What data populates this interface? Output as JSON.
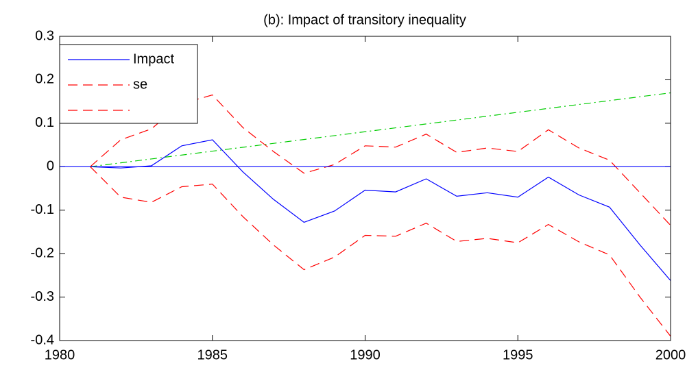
{
  "chart_data": {
    "type": "line",
    "title": "(b): Impact of transitory inequality",
    "xlim": [
      1980,
      2000
    ],
    "xticks": [
      1980,
      1985,
      1990,
      1995,
      2000
    ],
    "ylim": [
      -0.4,
      0.3
    ],
    "yticks": [
      -0.4,
      -0.3,
      -0.2,
      -0.1,
      0,
      0.1,
      0.2,
      0.3
    ],
    "grid": false,
    "legend_position": "upper left",
    "series": [
      {
        "name": "Impact",
        "color": "#0000ff",
        "dash": "solid",
        "legend": true,
        "x": [
          1981,
          1982,
          1983,
          1984,
          1985,
          1986,
          1987,
          1988,
          1989,
          1990,
          1991,
          1992,
          1993,
          1994,
          1995,
          1996,
          1997,
          1998,
          1999,
          2000
        ],
        "values": [
          0,
          -0.003,
          0.002,
          0.048,
          0.062,
          -0.012,
          -0.075,
          -0.128,
          -0.102,
          -0.054,
          -0.058,
          -0.028,
          -0.068,
          -0.06,
          -0.07,
          -0.024,
          -0.065,
          -0.093,
          -0.18,
          -0.262
        ]
      },
      {
        "name": "se",
        "color": "#ff0000",
        "dash": "dashed",
        "legend": true,
        "x": [
          1981,
          1982,
          1983,
          1984,
          1985,
          1986,
          1987,
          1988,
          1989,
          1990,
          1991,
          1992,
          1993,
          1994,
          1995,
          1996,
          1997,
          1998,
          1999,
          2000
        ],
        "values": [
          0,
          0.062,
          0.087,
          0.145,
          0.165,
          0.09,
          0.035,
          -0.015,
          0.005,
          0.048,
          0.045,
          0.075,
          0.033,
          0.043,
          0.035,
          0.085,
          0.043,
          0.015,
          -0.06,
          -0.135
        ]
      },
      {
        "color": "#ff0000",
        "dash": "dashed",
        "legend": true,
        "x": [
          1981,
          1982,
          1983,
          1984,
          1985,
          1986,
          1987,
          1988,
          1989,
          1990,
          1991,
          1992,
          1993,
          1994,
          1995,
          1996,
          1997,
          1998,
          1999,
          2000
        ],
        "values": [
          0,
          -0.07,
          -0.082,
          -0.046,
          -0.04,
          -0.115,
          -0.18,
          -0.237,
          -0.208,
          -0.158,
          -0.16,
          -0.13,
          -0.172,
          -0.165,
          -0.175,
          -0.133,
          -0.173,
          -0.203,
          -0.3,
          -0.39
        ]
      },
      {
        "color": "#00cc00",
        "dash": "dashdot",
        "legend": false,
        "x": [
          1981,
          2000
        ],
        "values": [
          0,
          0.17
        ]
      },
      {
        "color": "#0000ff",
        "dash": "solid",
        "legend": false,
        "x": [
          1980,
          2000
        ],
        "values": [
          0,
          0
        ]
      }
    ]
  }
}
